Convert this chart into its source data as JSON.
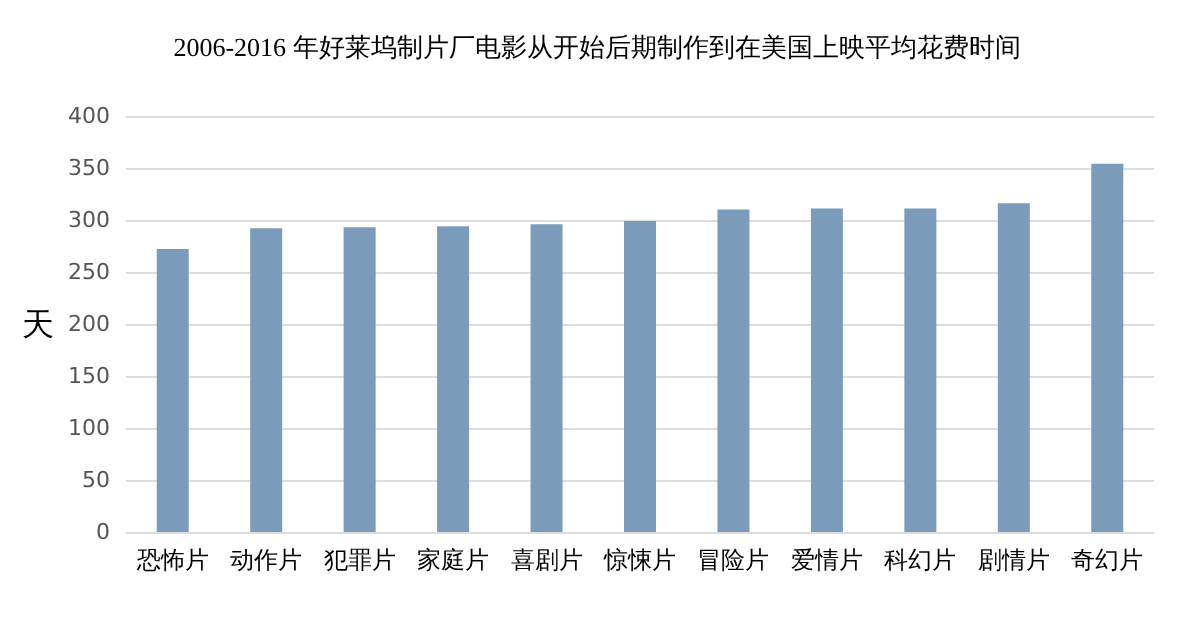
{
  "chart_data": {
    "type": "bar",
    "title": "2006-2016 年好莱坞制片厂电影从开始后期制作到在美国上映平均花费时间",
    "ylabel": "天",
    "categories": [
      "恐怖片",
      "动作片",
      "犯罪片",
      "家庭片",
      "喜剧片",
      "惊悚片",
      "冒险片",
      "爱情片",
      "科幻片",
      "剧情片",
      "奇幻片"
    ],
    "values": [
      272,
      292,
      293,
      294,
      296,
      299,
      310,
      311,
      311,
      316,
      354
    ],
    "color": "#7a9cba",
    "ylim": [
      0,
      400
    ],
    "yticks": [
      0,
      50,
      100,
      150,
      200,
      250,
      300,
      350,
      400
    ],
    "grid": "y"
  }
}
